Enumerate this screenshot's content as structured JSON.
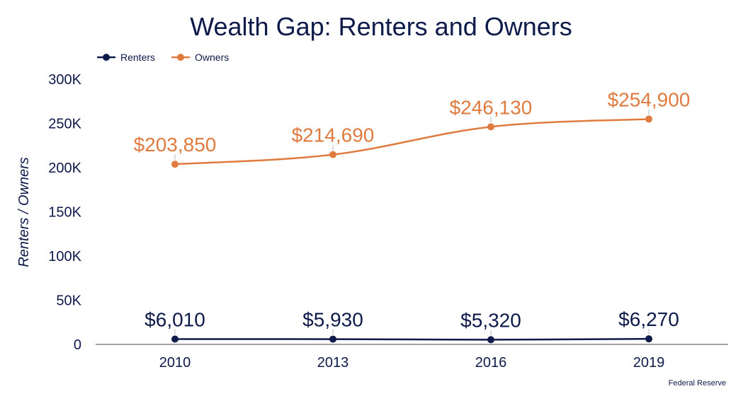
{
  "chart_data": {
    "type": "line",
    "title": "Wealth Gap: Renters and Owners",
    "xlabel": "",
    "ylabel": "Renters / Owners",
    "categories": [
      "2010",
      "2013",
      "2016",
      "2019"
    ],
    "ylim": [
      0,
      300000
    ],
    "yticks": [
      0,
      50000,
      100000,
      150000,
      200000,
      250000,
      300000
    ],
    "ytick_labels": [
      "0",
      "50K",
      "100K",
      "150K",
      "200K",
      "250K",
      "300K"
    ],
    "grid": false,
    "legend_position": "top-left",
    "series": [
      {
        "name": "Renters",
        "color": "#0d1a4a",
        "values": [
          6010,
          5930,
          5320,
          6270
        ],
        "labels": [
          "$6,010",
          "$5,930",
          "$5,320",
          "$6,270"
        ]
      },
      {
        "name": "Owners",
        "color": "#e07b3f",
        "values": [
          203850,
          214690,
          246130,
          254900
        ],
        "labels": [
          "$203,850",
          "$214,690",
          "$246,130",
          "$254,900"
        ]
      }
    ],
    "source": "Federal Reserve"
  }
}
